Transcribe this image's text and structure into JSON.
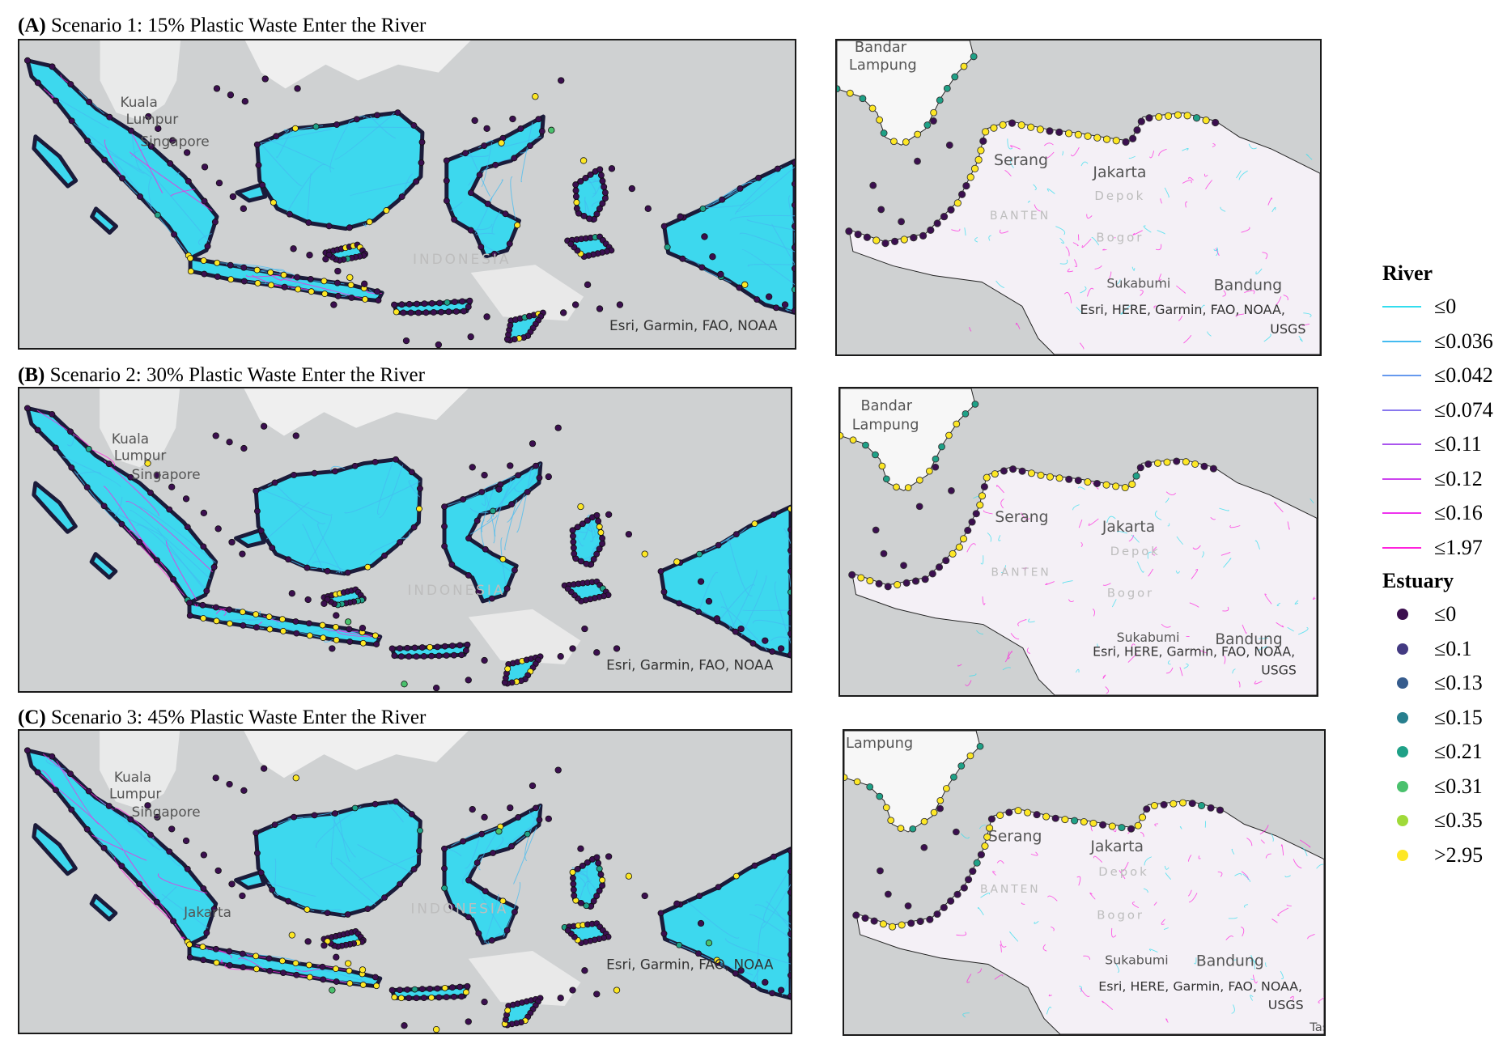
{
  "panels": [
    {
      "letter": "(A)",
      "title": "Scenario 1: 15% Plastic Waste Enter the River"
    },
    {
      "letter": "(B)",
      "title": "Scenario 2: 30% Plastic Waste Enter the River"
    },
    {
      "letter": "(C)",
      "title": "Scenario 3: 45% Plastic Waste Enter the River"
    }
  ],
  "maps": {
    "a_left": {
      "kuala": "Kuala",
      "lumpur": "Lumpur",
      "singapore": "Singapore",
      "indonesia": "INDONESIA",
      "attribution": "Esri, Garmin, FAO, NOAA"
    },
    "b_left": {
      "kuala": "Kuala",
      "lumpur": "Lumpur",
      "singapore": "Singapore",
      "indonesia": "INDONESIA",
      "attribution": "Esri, Garmin, FAO, NOAA"
    },
    "c_left": {
      "kuala": "Kuala",
      "lumpur": "Lumpur",
      "singapore": "Singapore",
      "jakarta": "Jakarta",
      "indonesia": "INDONESIA",
      "attribution": "Esri, Garmin, FAO, NOAA"
    },
    "a_right": {
      "bandar": "Bandar",
      "lampung": "Lampung",
      "serang": "Serang",
      "jakarta": "Jakarta",
      "depok": "Depok",
      "banten": "BANTEN",
      "bogor": "Bogor",
      "sukabumi": "Sukabumi",
      "bandung": "Bandung",
      "attribution_1": "Esri, HERE, Garmin, FAO, NOAA,",
      "attribution_2": "USGS"
    },
    "b_right": {
      "bandar": "Bandar",
      "lampung": "Lampung",
      "serang": "Serang",
      "jakarta": "Jakarta",
      "depok": "Depok",
      "banten": "BANTEN",
      "bogor": "Bogor",
      "sukabumi": "Sukabumi",
      "bandung": "Bandung",
      "attribution_1": "Esri, HERE, Garmin, FAO, NOAA,",
      "attribution_2": "USGS"
    },
    "c_right": {
      "lampung": "Lampung",
      "serang": "Serang",
      "jakarta": "Jakarta",
      "depok": "Depok",
      "banten": "BANTEN",
      "bogor": "Bogor",
      "sukabumi": "Sukabumi",
      "bandung": "Bandung",
      "attribution_1": "Esri, HERE, Garmin, FAO, NOAA,",
      "attribution_2": "USGS",
      "tasi": "Tasi"
    }
  },
  "legend": {
    "river_title": "River",
    "river": [
      {
        "label": "≤0",
        "color": "#33ddee"
      },
      {
        "label": "≤0.036",
        "color": "#44bbf0"
      },
      {
        "label": "≤0.042",
        "color": "#6699ee"
      },
      {
        "label": "≤0.074",
        "color": "#8877ee"
      },
      {
        "label": "≤0.11",
        "color": "#aa55ee"
      },
      {
        "label": "≤0.12",
        "color": "#cc44ee"
      },
      {
        "label": "≤0.16",
        "color": "#ee33ee"
      },
      {
        "label": "≤1.97",
        "color": "#ff22dd"
      }
    ],
    "estuary_title": "Estuary",
    "estuary": [
      {
        "label": "≤0",
        "color": "#3b0f4f"
      },
      {
        "label": "≤0.1",
        "color": "#433a82"
      },
      {
        "label": "≤0.13",
        "color": "#365c8d"
      },
      {
        "label": "≤0.15",
        "color": "#277f8e"
      },
      {
        "label": "≤0.21",
        "color": "#1fa187"
      },
      {
        "label": "≤0.31",
        "color": "#4ac16d"
      },
      {
        "label": "≤0.35",
        "color": "#a0da39"
      },
      {
        "label": ">2.95",
        "color": "#fde725"
      }
    ]
  }
}
